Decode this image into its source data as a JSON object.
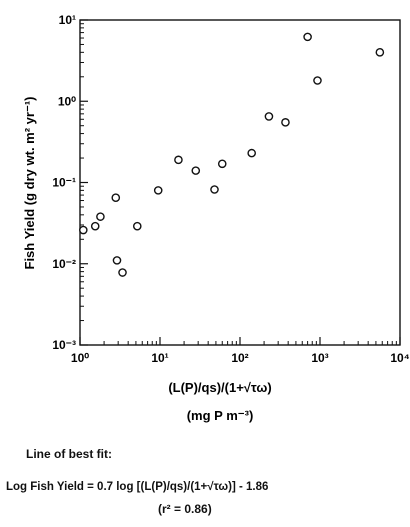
{
  "chart_data": {
    "type": "scatter",
    "xlabel": "(L(P)/qs)/(1+√τω)",
    "xunits": "(mg P m⁻³)",
    "ylabel": "Fish Yield (g dry wt. m² yr⁻¹)",
    "x_scale": "log",
    "y_scale": "log",
    "xlim": [
      1,
      10000
    ],
    "ylim": [
      0.001,
      10
    ],
    "x_ticks": [
      1,
      10,
      100,
      1000,
      10000
    ],
    "x_tick_labels": [
      "10⁰",
      "10¹",
      "10²",
      "10³",
      "10⁴"
    ],
    "y_ticks": [
      0.001,
      0.01,
      0.1,
      1,
      10
    ],
    "y_tick_labels": [
      "10⁻³",
      "10⁻²",
      "10⁻¹",
      "10⁰",
      "10¹"
    ],
    "grid": false,
    "points": [
      {
        "x": 1.1,
        "y": 0.026
      },
      {
        "x": 1.55,
        "y": 0.029
      },
      {
        "x": 1.8,
        "y": 0.038
      },
      {
        "x": 2.8,
        "y": 0.065
      },
      {
        "x": 2.9,
        "y": 0.011
      },
      {
        "x": 3.4,
        "y": 0.0078
      },
      {
        "x": 5.2,
        "y": 0.029
      },
      {
        "x": 9.5,
        "y": 0.08
      },
      {
        "x": 17,
        "y": 0.19
      },
      {
        "x": 28,
        "y": 0.14
      },
      {
        "x": 48,
        "y": 0.082
      },
      {
        "x": 60,
        "y": 0.17
      },
      {
        "x": 140,
        "y": 0.23
      },
      {
        "x": 230,
        "y": 0.65
      },
      {
        "x": 370,
        "y": 0.55
      },
      {
        "x": 700,
        "y": 6.2
      },
      {
        "x": 930,
        "y": 1.8
      },
      {
        "x": 5600,
        "y": 4.0
      }
    ]
  },
  "captions": {
    "fit_heading": "Line of best fit:",
    "equation": "Log Fish Yield = 0.7 log [(L(P)/qs)/(1+√τω)] - 1.86",
    "r_squared": "(r² = 0.86)"
  }
}
